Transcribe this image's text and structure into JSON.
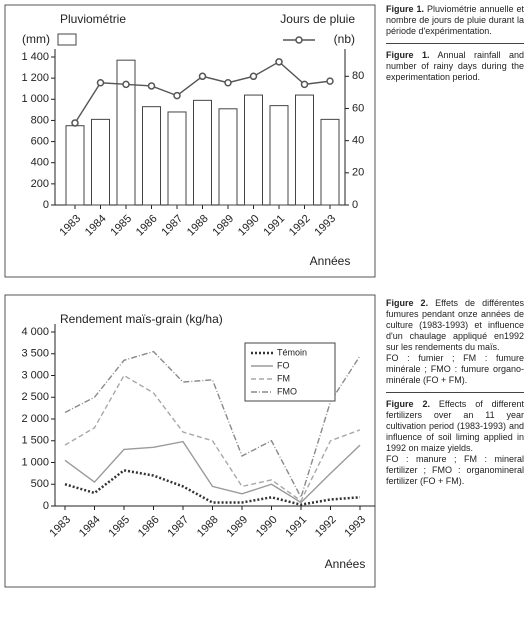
{
  "chart_data": [
    {
      "type": "bar",
      "y_title": "Pluviométrie",
      "y2_title": "Jours de pluie",
      "x_title": "Années",
      "categories": [
        "1983",
        "1984",
        "1985",
        "1986",
        "1987",
        "1988",
        "1989",
        "1990",
        "1991",
        "1992",
        "1993"
      ],
      "series": [
        {
          "name": "(mm)",
          "color": "#ffffff",
          "values": [
            750,
            810,
            1370,
            930,
            880,
            990,
            910,
            1040,
            940,
            1040,
            810
          ]
        },
        {
          "name": "(nb)",
          "type": "line",
          "axis": "y2",
          "color": "#555555",
          "values": [
            51,
            76,
            75,
            74,
            68,
            80,
            76,
            80,
            89,
            75,
            77
          ]
        }
      ],
      "ylim": [
        0,
        1400
      ],
      "yticks": [
        0,
        200,
        400,
        600,
        800,
        {
          "value": 1000,
          "label": "1 000"
        },
        {
          "value": 1200,
          "label": "1 200"
        },
        {
          "value": 1400,
          "label": "1 400"
        }
      ],
      "y2lim": [
        0,
        92
      ],
      "y2ticks": [
        0,
        20,
        40,
        60,
        80
      ]
    },
    {
      "type": "line",
      "title": "Rendement maïs-grain (kg/ha)",
      "x_title": "Années",
      "categories": [
        "1983",
        "1984",
        "1985",
        "1986",
        "1987",
        "1988",
        "1989",
        "1990",
        "1991",
        "1992",
        "1993"
      ],
      "series": [
        {
          "name": "Témoin",
          "color": "#333333",
          "dash": "dotted",
          "values": [
            500,
            300,
            820,
            700,
            450,
            80,
            80,
            200,
            30,
            150,
            200
          ]
        },
        {
          "name": "FO",
          "color": "#9a9a9a",
          "dash": "solid",
          "values": [
            1050,
            550,
            1300,
            1350,
            1480,
            450,
            280,
            500,
            80,
            750,
            1400
          ]
        },
        {
          "name": "FM",
          "color": "#a8a8a8",
          "dash": "dashed",
          "values": [
            1400,
            1800,
            3000,
            2600,
            1700,
            1500,
            450,
            600,
            120,
            1500,
            1750
          ]
        },
        {
          "name": "FMO",
          "color": "#8a8a8a",
          "dash": "dashdot",
          "values": [
            2150,
            2500,
            3350,
            3550,
            2850,
            2900,
            1150,
            1500,
            200,
            2400,
            3450
          ]
        }
      ],
      "ylim": [
        0,
        4000
      ],
      "yticks": [
        0,
        500,
        {
          "value": 1000,
          "label": "1 000"
        },
        {
          "value": 1500,
          "label": "1 500"
        },
        {
          "value": 2000,
          "label": "2 000"
        },
        {
          "value": 2500,
          "label": "2 500"
        },
        {
          "value": 3000,
          "label": "3 000"
        },
        {
          "value": 3500,
          "label": "3 500"
        },
        {
          "value": 4000,
          "label": "4 000"
        }
      ]
    }
  ],
  "captions": [
    {
      "label": "Figure 1.",
      "fr": "Pluviométrie annuelle et nombre de jours de pluie durant la période d'expérimentation.",
      "en": "Annual rainfall and number of rainy days during the experimentation period."
    },
    {
      "label": "Figure 2.",
      "fr": "Effets de différentes fumures pendant onze années de culture (1983-1993) et influence d'un chaulage appliqué en1992 sur les rendements du maïs.",
      "fr_note": "FO : fumier ; FM : fumure minérale ; FMO : fumure organo-minérale (FO + FM).",
      "en": "Effects of different fertilizers over an 11 year cultivation period (1983-1993) and influence of soil liming applied in 1992 on maize yields.",
      "en_note": "FO : manure ; FM : mineral fertilizer ; FMO : organomineral fertilizer (FO + FM)."
    }
  ]
}
